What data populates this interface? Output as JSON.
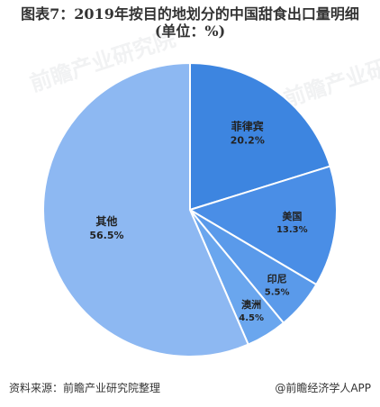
{
  "header": {
    "title_line1": "图表7：2019年按目的地划分的中国甜食出口量明细",
    "title_line2": "(单位：%)"
  },
  "watermark": {
    "text": "前瞻产业研究院"
  },
  "chart_data": {
    "type": "pie",
    "title": "图表7：2019年按目的地划分的中国甜食出口量明细",
    "unit": "(单位：%)",
    "start_angle_deg": 0,
    "direction": "clockwise",
    "categories": [
      "菲律宾",
      "美国",
      "印尼",
      "澳洲",
      "其他"
    ],
    "values": [
      20.2,
      13.3,
      5.5,
      4.5,
      56.5
    ],
    "value_labels": [
      "20.2%",
      "13.3%",
      "5.5%",
      "4.5%",
      "56.5%"
    ],
    "colors": [
      "#3d85e0",
      "#4a8ee6",
      "#5a9aea",
      "#6aa6ee",
      "#8db8f2"
    ],
    "legend": "none"
  },
  "footer": {
    "source": "资料来源：前瞻产业研究院整理",
    "brand": "@前瞻经济学人APP"
  }
}
